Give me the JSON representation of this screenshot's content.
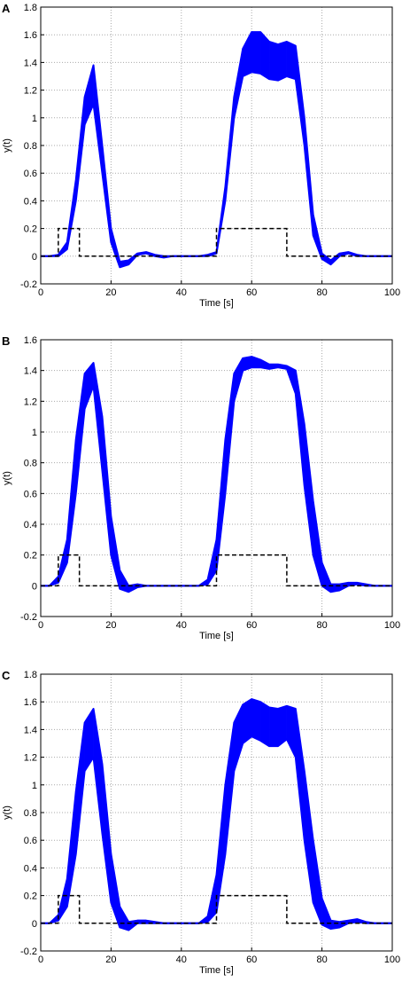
{
  "chart_data": [
    {
      "type": "band",
      "panel_label": "A",
      "xlabel": "Time [s]",
      "ylabel": "y(t)",
      "x": [
        0,
        2.5,
        5,
        7.5,
        10,
        12.5,
        15,
        17.5,
        20,
        22.5,
        25,
        27.5,
        30,
        32.5,
        35,
        37.5,
        40,
        42.5,
        45,
        47.5,
        50,
        52.5,
        55,
        57.5,
        60,
        62.5,
        65,
        67.5,
        70,
        72.5,
        75,
        77.5,
        80,
        82.5,
        85,
        87.5,
        90,
        92.5,
        95,
        97.5,
        100
      ],
      "band": {
        "color": "#0000ff",
        "lower": [
          0,
          0,
          0,
          0.05,
          0.4,
          0.95,
          1.1,
          0.6,
          0.1,
          -0.08,
          -0.06,
          0.01,
          0.02,
          0,
          -0.01,
          0,
          0,
          0,
          0,
          0,
          0.02,
          0.4,
          1.0,
          1.3,
          1.33,
          1.32,
          1.28,
          1.27,
          1.3,
          1.28,
          0.8,
          0.15,
          -0.02,
          -0.06,
          0,
          0.02,
          0,
          0,
          0,
          0,
          0
        ],
        "upper": [
          0,
          0,
          0.01,
          0.1,
          0.55,
          1.15,
          1.38,
          0.8,
          0.2,
          -0.04,
          -0.03,
          0.02,
          0.03,
          0.01,
          0,
          0,
          0,
          0,
          0,
          0.01,
          0.03,
          0.5,
          1.15,
          1.5,
          1.62,
          1.62,
          1.55,
          1.53,
          1.55,
          1.52,
          1.0,
          0.3,
          0.02,
          -0.03,
          0.02,
          0.03,
          0.01,
          0,
          0,
          0,
          0
        ]
      },
      "reference": {
        "color": "#000000",
        "dashed": true,
        "x": [
          0,
          5,
          5,
          11,
          11,
          50,
          50,
          70,
          70,
          100
        ],
        "values": [
          0,
          0,
          0.2,
          0.2,
          0,
          0,
          0.2,
          0.2,
          0,
          0
        ]
      },
      "xlim": [
        0,
        100
      ],
      "ylim": [
        -0.2,
        1.8
      ],
      "xticks": [
        0,
        20,
        40,
        60,
        80,
        100
      ],
      "yticks": [
        -0.2,
        0,
        0.2,
        0.4,
        0.6,
        0.8,
        1,
        1.2,
        1.4,
        1.6,
        1.8
      ],
      "grid": true
    },
    {
      "type": "band",
      "panel_label": "B",
      "xlabel": "Time [s]",
      "ylabel": "y(t)",
      "x": [
        0,
        2.5,
        5,
        7.5,
        10,
        12.5,
        15,
        17.5,
        20,
        22.5,
        25,
        27.5,
        30,
        32.5,
        35,
        37.5,
        40,
        42.5,
        45,
        47.5,
        50,
        52.5,
        55,
        57.5,
        60,
        62.5,
        65,
        67.5,
        70,
        72.5,
        75,
        77.5,
        80,
        82.5,
        85,
        87.5,
        90,
        92.5,
        95,
        97.5,
        100
      ],
      "band": {
        "color": "#0000ff",
        "lower": [
          0,
          0,
          0.02,
          0.15,
          0.6,
          1.15,
          1.3,
          0.75,
          0.2,
          -0.02,
          -0.04,
          -0.01,
          0,
          0,
          0,
          0,
          0,
          0,
          0,
          0.01,
          0.1,
          0.6,
          1.2,
          1.4,
          1.42,
          1.42,
          1.41,
          1.42,
          1.41,
          1.25,
          0.65,
          0.2,
          0,
          -0.04,
          -0.03,
          0,
          0.01,
          0,
          0,
          0,
          0
        ],
        "upper": [
          0,
          0,
          0.06,
          0.3,
          0.95,
          1.38,
          1.45,
          1.1,
          0.45,
          0.1,
          0,
          0.01,
          0,
          0,
          0,
          0,
          0,
          0,
          0,
          0.04,
          0.3,
          0.95,
          1.38,
          1.48,
          1.49,
          1.47,
          1.44,
          1.44,
          1.43,
          1.4,
          1.05,
          0.55,
          0.15,
          0.01,
          0.01,
          0.02,
          0.02,
          0.01,
          0,
          0,
          0
        ]
      },
      "reference": {
        "color": "#000000",
        "dashed": true,
        "x": [
          0,
          5,
          5,
          11,
          11,
          50,
          50,
          70,
          70,
          100
        ],
        "values": [
          0,
          0,
          0.2,
          0.2,
          0,
          0,
          0.2,
          0.2,
          0,
          0
        ]
      },
      "xlim": [
        0,
        100
      ],
      "ylim": [
        -0.2,
        1.6
      ],
      "xticks": [
        0,
        20,
        40,
        60,
        80,
        100
      ],
      "yticks": [
        -0.2,
        0,
        0.2,
        0.4,
        0.6,
        0.8,
        1,
        1.2,
        1.4,
        1.6
      ],
      "grid": true
    },
    {
      "type": "band",
      "panel_label": "C",
      "xlabel": "Time [s]",
      "ylabel": "y(t)",
      "x": [
        0,
        2.5,
        5,
        7.5,
        10,
        12.5,
        15,
        17.5,
        20,
        22.5,
        25,
        27.5,
        30,
        32.5,
        35,
        37.5,
        40,
        42.5,
        45,
        47.5,
        50,
        52.5,
        55,
        57.5,
        60,
        62.5,
        65,
        67.5,
        70,
        72.5,
        75,
        77.5,
        80,
        82.5,
        85,
        87.5,
        90,
        92.5,
        95,
        97.5,
        100
      ],
      "band": {
        "color": "#0000ff",
        "lower": [
          0,
          0,
          0.02,
          0.12,
          0.5,
          1.1,
          1.2,
          0.65,
          0.15,
          -0.03,
          -0.05,
          0,
          0,
          0,
          0,
          0,
          0,
          0,
          0,
          0.01,
          0.08,
          0.5,
          1.1,
          1.3,
          1.35,
          1.32,
          1.28,
          1.28,
          1.33,
          1.2,
          0.6,
          0.15,
          -0.01,
          -0.04,
          -0.03,
          0,
          0.01,
          0,
          0,
          0,
          0
        ],
        "upper": [
          0,
          0,
          0.06,
          0.32,
          0.95,
          1.45,
          1.55,
          1.15,
          0.5,
          0.12,
          0.01,
          0.02,
          0.02,
          0.01,
          0,
          0,
          0,
          0,
          0,
          0.05,
          0.35,
          1.0,
          1.45,
          1.58,
          1.62,
          1.6,
          1.56,
          1.55,
          1.57,
          1.55,
          1.1,
          0.6,
          0.18,
          0.02,
          0.01,
          0.02,
          0.03,
          0.01,
          0,
          0,
          0
        ]
      },
      "reference": {
        "color": "#000000",
        "dashed": true,
        "x": [
          0,
          5,
          5,
          11,
          11,
          50,
          50,
          70,
          70,
          100
        ],
        "values": [
          0,
          0,
          0.2,
          0.2,
          0,
          0,
          0.2,
          0.2,
          0,
          0
        ]
      },
      "xlim": [
        0,
        100
      ],
      "ylim": [
        -0.2,
        1.8
      ],
      "xticks": [
        0,
        20,
        40,
        60,
        80,
        100
      ],
      "yticks": [
        -0.2,
        0,
        0.2,
        0.4,
        0.6,
        0.8,
        1,
        1.2,
        1.4,
        1.6,
        1.8
      ],
      "grid": true
    }
  ]
}
